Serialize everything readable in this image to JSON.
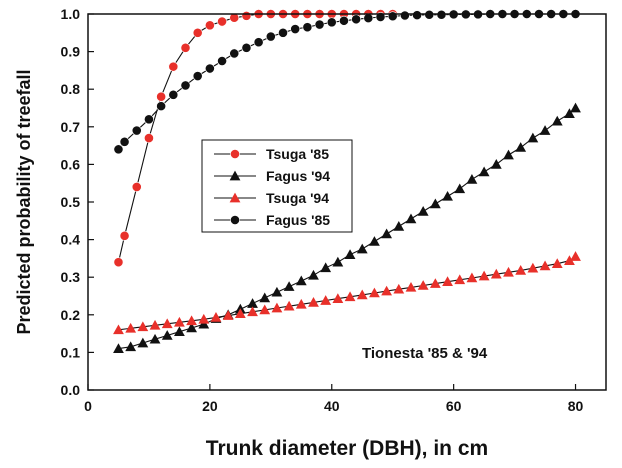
{
  "chart_data": {
    "type": "line",
    "title": "",
    "xlabel": "Trunk diameter (DBH), in cm",
    "ylabel": "Predicted probability of treefall",
    "xlim": [
      0,
      85
    ],
    "ylim": [
      0,
      1.0
    ],
    "x_ticks": [
      "0",
      "20",
      "40",
      "60",
      "80"
    ],
    "y_ticks": [
      "0.0",
      "0.1",
      "0.2",
      "0.3",
      "0.4",
      "0.5",
      "0.6",
      "0.7",
      "0.8",
      "0.9",
      "1.0"
    ],
    "grid": false,
    "legend_placement": "center-left",
    "annotation": "Tionesta '85 & '94",
    "series": [
      {
        "name": "Tsuga '85",
        "color": "#e8302a",
        "marker": "circle",
        "x": [
          5,
          6,
          8,
          10,
          12,
          14,
          16,
          18,
          20,
          22,
          24,
          26,
          28,
          30,
          32,
          34,
          36,
          38,
          40,
          42,
          44,
          46,
          48,
          50
        ],
        "y": [
          0.34,
          0.41,
          0.54,
          0.67,
          0.78,
          0.86,
          0.91,
          0.95,
          0.97,
          0.98,
          0.99,
          0.995,
          1.0,
          1.0,
          1.0,
          1.0,
          1.0,
          1.0,
          1.0,
          1.0,
          1.0,
          1.0,
          1.0,
          1.0
        ]
      },
      {
        "name": "Fagus '94",
        "color": "#111111",
        "marker": "triangle",
        "x": [
          5,
          7,
          9,
          11,
          13,
          15,
          17,
          19,
          21,
          23,
          25,
          27,
          29,
          31,
          33,
          35,
          37,
          39,
          41,
          43,
          45,
          47,
          49,
          51,
          53,
          55,
          57,
          59,
          61,
          63,
          65,
          67,
          69,
          71,
          73,
          75,
          77,
          79,
          80
        ],
        "y": [
          0.11,
          0.115,
          0.125,
          0.135,
          0.145,
          0.155,
          0.165,
          0.175,
          0.19,
          0.2,
          0.215,
          0.23,
          0.245,
          0.26,
          0.275,
          0.29,
          0.305,
          0.325,
          0.34,
          0.36,
          0.375,
          0.395,
          0.415,
          0.435,
          0.455,
          0.475,
          0.495,
          0.515,
          0.535,
          0.56,
          0.58,
          0.6,
          0.625,
          0.645,
          0.67,
          0.69,
          0.715,
          0.735,
          0.75
        ]
      },
      {
        "name": "Tsuga '94",
        "color": "#e8302a",
        "marker": "triangle",
        "x": [
          5,
          7,
          9,
          11,
          13,
          15,
          17,
          19,
          21,
          23,
          25,
          27,
          29,
          31,
          33,
          35,
          37,
          39,
          41,
          43,
          45,
          47,
          49,
          51,
          53,
          55,
          57,
          59,
          61,
          63,
          65,
          67,
          69,
          71,
          73,
          75,
          77,
          79,
          80
        ],
        "y": [
          0.16,
          0.164,
          0.168,
          0.172,
          0.176,
          0.18,
          0.184,
          0.188,
          0.193,
          0.198,
          0.203,
          0.208,
          0.213,
          0.218,
          0.223,
          0.228,
          0.233,
          0.238,
          0.243,
          0.248,
          0.253,
          0.258,
          0.263,
          0.268,
          0.273,
          0.278,
          0.283,
          0.288,
          0.293,
          0.298,
          0.303,
          0.308,
          0.313,
          0.318,
          0.324,
          0.33,
          0.336,
          0.344,
          0.355
        ]
      },
      {
        "name": "Fagus '85",
        "color": "#111111",
        "marker": "circle",
        "x": [
          5,
          6,
          8,
          10,
          12,
          14,
          16,
          18,
          20,
          22,
          24,
          26,
          28,
          30,
          32,
          34,
          36,
          38,
          40,
          42,
          44,
          46,
          48,
          50,
          52,
          54,
          56,
          58,
          60,
          62,
          64,
          66,
          68,
          70,
          72,
          74,
          76,
          78,
          80
        ],
        "y": [
          0.64,
          0.66,
          0.69,
          0.72,
          0.755,
          0.785,
          0.81,
          0.835,
          0.855,
          0.875,
          0.895,
          0.91,
          0.925,
          0.94,
          0.95,
          0.96,
          0.965,
          0.972,
          0.978,
          0.982,
          0.986,
          0.989,
          0.992,
          0.994,
          0.996,
          0.997,
          0.998,
          0.998,
          0.999,
          0.999,
          0.999,
          1.0,
          1.0,
          1.0,
          1.0,
          1.0,
          1.0,
          1.0,
          1.0
        ]
      }
    ]
  }
}
